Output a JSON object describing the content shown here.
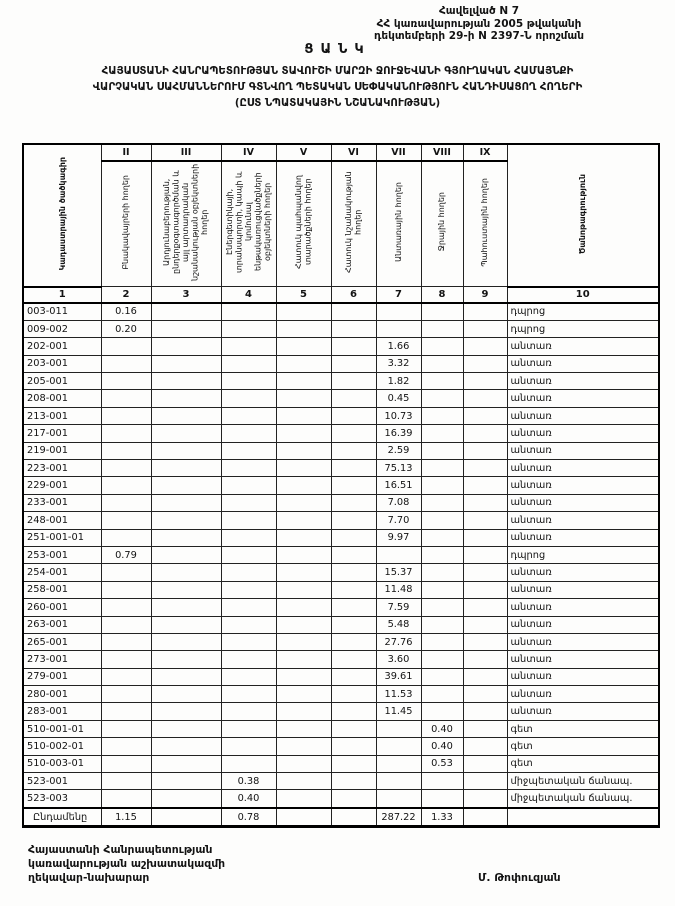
{
  "appendix": {
    "line1": "Հավելված N 7",
    "line2": "ՀՀ կառավարության 2005 թվականի",
    "line3": "դեկտեմբերի 29-ի N 2397-Ն որոշման"
  },
  "title": "ՑԱՆԿ",
  "subtitle": {
    "line1": "ՀԱՅԱՍՏԱՆԻ ՀԱՆՐԱՊԵՏՈՒԹՅԱՆ ՏԱՎՈՒՇԻ ՄԱՐԶԻ ՋՈՒՋԵՎԱՆԻ ԳՅՈՒՂԱԿԱՆ ՀԱՄԱՅՆՔԻ",
    "line2": "ՎԱՐՉԱԿԱՆ ՍԱՀՄԱՆՆԵՐՈՒՄ ԳՏՆՎՈՂ ՊԵՏԱԿԱՆ ՍԵՓԱԿԱՆՈՒԹՅՈՒՆ ՀԱՆԴԻՍԱՑՈՂ ՀՈՂԵՐԻ",
    "line3": "(ԸՍՏ ՆՊԱՏԱԿԱՅԻՆ ՆՇԱՆԱԿՈՒԹՅԱՆ)"
  },
  "table": {
    "roman_numerals": [
      "II",
      "III",
      "IV",
      "V",
      "VI",
      "VII",
      "VIII",
      "IX"
    ],
    "column_headers": [
      "Կադաստրային ծածկագիր",
      "Բնակավայրերի հողեր",
      "Արդյունաբերության, ընդերքօգտագործման և այլ արտադրական նշանակության օբյեկտների հողեր",
      "Էներգետիկայի, տրանսպորտի, կապի և կոմունալ ենթակառուցվածքների օբյեկտների հողեր",
      "Հատուկ պահպանվող տարածքների հողեր",
      "Հատուկ նշանակության հողեր",
      "Անտառային հողեր",
      "Ջրային հողեր",
      "Պահուստային հողեր",
      "Ծանոթագրություն"
    ],
    "column_numbers": [
      "1",
      "2",
      "3",
      "4",
      "5",
      "6",
      "7",
      "8",
      "9",
      "10"
    ],
    "rows": [
      [
        "003-011",
        "0.16",
        "",
        "",
        "",
        "",
        "",
        "",
        "",
        "դպրոց"
      ],
      [
        "009-002",
        "0.20",
        "",
        "",
        "",
        "",
        "",
        "",
        "",
        "դպրոց"
      ],
      [
        "202-001",
        "",
        "",
        "",
        "",
        "",
        "1.66",
        "",
        "",
        "անտառ"
      ],
      [
        "203-001",
        "",
        "",
        "",
        "",
        "",
        "3.32",
        "",
        "",
        "անտառ"
      ],
      [
        "205-001",
        "",
        "",
        "",
        "",
        "",
        "1.82",
        "",
        "",
        "անտառ"
      ],
      [
        "208-001",
        "",
        "",
        "",
        "",
        "",
        "0.45",
        "",
        "",
        "անտառ"
      ],
      [
        "213-001",
        "",
        "",
        "",
        "",
        "",
        "10.73",
        "",
        "",
        "անտառ"
      ],
      [
        "217-001",
        "",
        "",
        "",
        "",
        "",
        "16.39",
        "",
        "",
        "անտառ"
      ],
      [
        "219-001",
        "",
        "",
        "",
        "",
        "",
        "2.59",
        "",
        "",
        "անտառ"
      ],
      [
        "223-001",
        "",
        "",
        "",
        "",
        "",
        "75.13",
        "",
        "",
        "անտառ"
      ],
      [
        "229-001",
        "",
        "",
        "",
        "",
        "",
        "16.51",
        "",
        "",
        "անտառ"
      ],
      [
        "233-001",
        "",
        "",
        "",
        "",
        "",
        "7.08",
        "",
        "",
        "անտառ"
      ],
      [
        "248-001",
        "",
        "",
        "",
        "",
        "",
        "7.70",
        "",
        "",
        "անտառ"
      ],
      [
        "251-001-01",
        "",
        "",
        "",
        "",
        "",
        "9.97",
        "",
        "",
        "անտառ"
      ],
      [
        "253-001",
        "0.79",
        "",
        "",
        "",
        "",
        "",
        "",
        "",
        "դպրոց"
      ],
      [
        "254-001",
        "",
        "",
        "",
        "",
        "",
        "15.37",
        "",
        "",
        "անտառ"
      ],
      [
        "258-001",
        "",
        "",
        "",
        "",
        "",
        "11.48",
        "",
        "",
        "անտառ"
      ],
      [
        "260-001",
        "",
        "",
        "",
        "",
        "",
        "7.59",
        "",
        "",
        "անտառ"
      ],
      [
        "263-001",
        "",
        "",
        "",
        "",
        "",
        "5.48",
        "",
        "",
        "անտառ"
      ],
      [
        "265-001",
        "",
        "",
        "",
        "",
        "",
        "27.76",
        "",
        "",
        "անտառ"
      ],
      [
        "273-001",
        "",
        "",
        "",
        "",
        "",
        "3.60",
        "",
        "",
        "անտառ"
      ],
      [
        "279-001",
        "",
        "",
        "",
        "",
        "",
        "39.61",
        "",
        "",
        "անտառ"
      ],
      [
        "280-001",
        "",
        "",
        "",
        "",
        "",
        "11.53",
        "",
        "",
        "անտառ"
      ],
      [
        "283-001",
        "",
        "",
        "",
        "",
        "",
        "11.45",
        "",
        "",
        "անտառ"
      ],
      [
        "510-001-01",
        "",
        "",
        "",
        "",
        "",
        "",
        "0.40",
        "",
        "գետ"
      ],
      [
        "510-002-01",
        "",
        "",
        "",
        "",
        "",
        "",
        "0.40",
        "",
        "գետ"
      ],
      [
        "510-003-01",
        "",
        "",
        "",
        "",
        "",
        "",
        "0.53",
        "",
        "գետ"
      ],
      [
        "523-001",
        "",
        "",
        "0.38",
        "",
        "",
        "",
        "",
        "",
        "միջպետական ճանապ."
      ],
      [
        "523-003",
        "",
        "",
        "0.40",
        "",
        "",
        "",
        "",
        "",
        "միջպետական ճանապ."
      ]
    ],
    "total_row": [
      "Ընդամենը",
      "1.15",
      "",
      "0.78",
      "",
      "",
      "287.22",
      "1.33",
      "",
      ""
    ]
  },
  "footer": {
    "line1": "Հայաստանի Հանրապետության",
    "line2": "կառավարության աշխատակազմի",
    "line3": "ղեկավար-նախարար",
    "signature": "Մ. Թոփուզյան"
  }
}
